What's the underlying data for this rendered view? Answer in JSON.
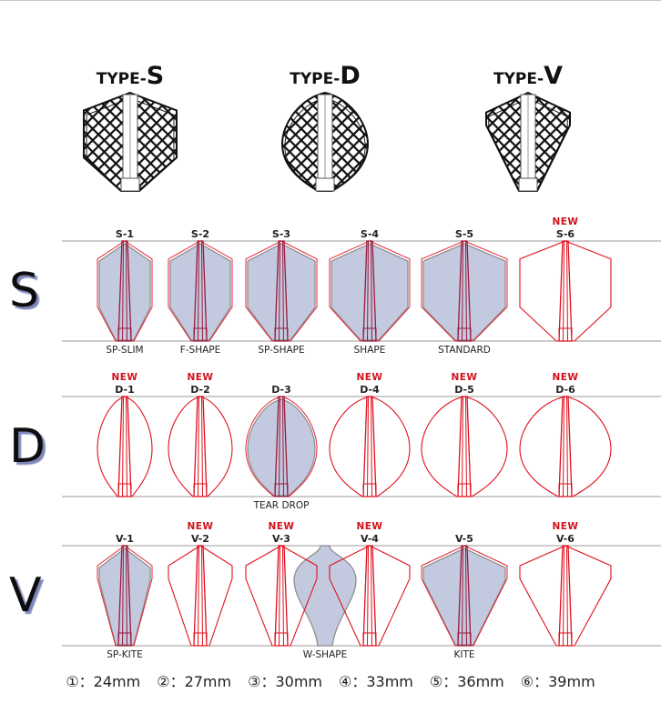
{
  "types": [
    {
      "prefix": "TYPE-",
      "letter": "S",
      "shape": "S"
    },
    {
      "prefix": "TYPE-",
      "letter": "D",
      "shape": "D"
    },
    {
      "prefix": "TYPE-",
      "letter": "V",
      "shape": "V"
    }
  ],
  "new_label": "NEW",
  "rows": [
    {
      "letter": "S",
      "shape": "S",
      "items": [
        {
          "code": "S-1",
          "size": 1,
          "name": "SP-SLIM",
          "new": false,
          "filled": true
        },
        {
          "code": "S-2",
          "size": 2,
          "name": "F-SHAPE",
          "new": false,
          "filled": true
        },
        {
          "code": "S-3",
          "size": 3,
          "name": "SP-SHAPE",
          "new": false,
          "filled": true
        },
        {
          "code": "S-4",
          "size": 4,
          "name": "SHAPE",
          "new": false,
          "filled": true
        },
        {
          "code": "S-5",
          "size": 5,
          "name": "STANDARD",
          "new": false,
          "filled": true
        },
        {
          "code": "S-6",
          "size": 6,
          "name": "",
          "new": true,
          "filled": false
        }
      ]
    },
    {
      "letter": "D",
      "shape": "D",
      "items": [
        {
          "code": "D-1",
          "size": 1,
          "name": "",
          "new": true,
          "filled": false
        },
        {
          "code": "D-2",
          "size": 2,
          "name": "",
          "new": true,
          "filled": false
        },
        {
          "code": "D-3",
          "size": 3,
          "name": "TEAR DROP",
          "new": false,
          "filled": true
        },
        {
          "code": "D-4",
          "size": 4,
          "name": "",
          "new": true,
          "filled": false
        },
        {
          "code": "D-5",
          "size": 5,
          "name": "",
          "new": true,
          "filled": false
        },
        {
          "code": "D-6",
          "size": 6,
          "name": "",
          "new": true,
          "filled": false
        }
      ]
    },
    {
      "letter": "V",
      "shape": "V",
      "extra_name": "W-SHAPE",
      "items": [
        {
          "code": "V-1",
          "size": 1,
          "name": "SP-KITE",
          "new": false,
          "filled": true
        },
        {
          "code": "V-2",
          "size": 2,
          "name": "",
          "new": true,
          "filled": false
        },
        {
          "code": "V-3",
          "size": 3,
          "name": "",
          "new": true,
          "filled": false
        },
        {
          "code": "V-4",
          "size": 4,
          "name": "",
          "new": true,
          "filled": false
        },
        {
          "code": "V-5",
          "size": 5,
          "name": "KITE",
          "new": false,
          "filled": true
        },
        {
          "code": "V-6",
          "size": 6,
          "name": "",
          "new": true,
          "filled": false
        }
      ]
    }
  ],
  "legend": [
    "①：24mm",
    "②：27mm",
    "③：30mm",
    "④：33mm",
    "⑤：36mm",
    "⑥：39mm"
  ],
  "colors": {
    "outline": "#e0101e",
    "filled_outline": "#9a1a3c",
    "fill": "#c3c9df",
    "gray": "#8a8a8a",
    "row_shadow": "#7d86b8",
    "new": "#d0121b"
  }
}
